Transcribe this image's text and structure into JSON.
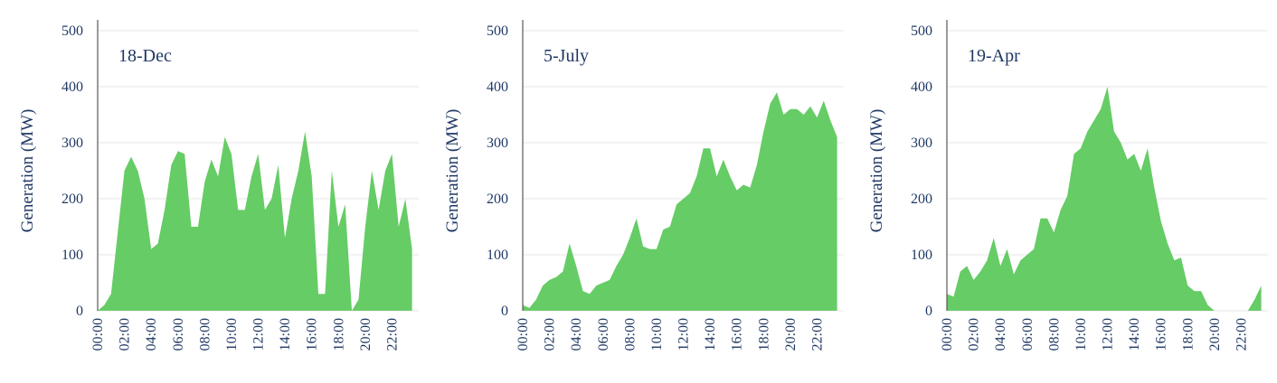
{
  "chart_data": [
    {
      "type": "area",
      "annotation": "18-Dec",
      "y_label": "Generation (MW)",
      "color": "#66cc66",
      "x": [
        0,
        0.5,
        1,
        1.5,
        2,
        2.5,
        3,
        3.5,
        4,
        4.5,
        5,
        5.5,
        6,
        6.5,
        7,
        7.5,
        8,
        8.5,
        9,
        9.5,
        10,
        10.5,
        11,
        11.5,
        12,
        12.5,
        13,
        13.5,
        14,
        14.5,
        15,
        15.5,
        16,
        16.5,
        17,
        17.5,
        18,
        18.5,
        19,
        19.5,
        20,
        20.5,
        21,
        21.5,
        22,
        22.5,
        23,
        23.5
      ],
      "values": [
        0,
        10,
        30,
        140,
        250,
        275,
        250,
        200,
        110,
        120,
        180,
        260,
        285,
        280,
        150,
        150,
        230,
        270,
        240,
        310,
        280,
        180,
        180,
        240,
        280,
        180,
        200,
        260,
        130,
        200,
        250,
        320,
        240,
        30,
        30,
        250,
        150,
        190,
        0,
        20,
        150,
        250,
        180,
        250,
        280,
        150,
        200,
        110
      ],
      "xlim": [
        0,
        24
      ],
      "xticks": [
        {
          "value": 0,
          "label": "00:00"
        },
        {
          "value": 2,
          "label": "02:00"
        },
        {
          "value": 4,
          "label": "04:00"
        },
        {
          "value": 6,
          "label": "06:00"
        },
        {
          "value": 8,
          "label": "08:00"
        },
        {
          "value": 10,
          "label": "10:00"
        },
        {
          "value": 12,
          "label": "12:00"
        },
        {
          "value": 14,
          "label": "14:00"
        },
        {
          "value": 16,
          "label": "16:00"
        },
        {
          "value": 18,
          "label": "18:00"
        },
        {
          "value": 20,
          "label": "20:00"
        },
        {
          "value": 22,
          "label": "22:00"
        }
      ],
      "ylim": [
        0,
        500
      ],
      "yticks": [
        0,
        100,
        200,
        300,
        400,
        500
      ],
      "grid": true
    },
    {
      "type": "area",
      "annotation": "5-July",
      "y_label": "Generation (MW)",
      "color": "#66cc66",
      "x": [
        0,
        0.5,
        1,
        1.5,
        2,
        2.5,
        3,
        3.5,
        4,
        4.5,
        5,
        5.5,
        6,
        6.5,
        7,
        7.5,
        8,
        8.5,
        9,
        9.5,
        10,
        10.5,
        11,
        11.5,
        12,
        12.5,
        13,
        13.5,
        14,
        14.5,
        15,
        15.5,
        16,
        16.5,
        17,
        17.5,
        18,
        18.5,
        19,
        19.5,
        20,
        20.5,
        21,
        21.5,
        22,
        22.5,
        23,
        23.5
      ],
      "values": [
        10,
        5,
        20,
        45,
        55,
        60,
        70,
        120,
        80,
        35,
        30,
        45,
        50,
        55,
        80,
        100,
        130,
        165,
        115,
        110,
        110,
        145,
        150,
        190,
        200,
        210,
        240,
        290,
        290,
        240,
        270,
        240,
        215,
        225,
        220,
        260,
        320,
        370,
        390,
        350,
        360,
        360,
        350,
        365,
        345,
        375,
        340,
        310
      ],
      "xlim": [
        0,
        24
      ],
      "xticks": [
        {
          "value": 0,
          "label": "00:00"
        },
        {
          "value": 2,
          "label": "02:00"
        },
        {
          "value": 4,
          "label": "04:00"
        },
        {
          "value": 6,
          "label": "06:00"
        },
        {
          "value": 8,
          "label": "08:00"
        },
        {
          "value": 10,
          "label": "10:00"
        },
        {
          "value": 12,
          "label": "12:00"
        },
        {
          "value": 14,
          "label": "14:00"
        },
        {
          "value": 16,
          "label": "16:00"
        },
        {
          "value": 18,
          "label": "18:00"
        },
        {
          "value": 20,
          "label": "20:00"
        },
        {
          "value": 22,
          "label": "22:00"
        }
      ],
      "ylim": [
        0,
        500
      ],
      "yticks": [
        0,
        100,
        200,
        300,
        400,
        500
      ],
      "grid": true
    },
    {
      "type": "area",
      "annotation": "19-Apr",
      "y_label": "Generation (MW)",
      "color": "#66cc66",
      "x": [
        0,
        0.5,
        1,
        1.5,
        2,
        2.5,
        3,
        3.5,
        4,
        4.5,
        5,
        5.5,
        6,
        6.5,
        7,
        7.5,
        8,
        8.5,
        9,
        9.5,
        10,
        10.5,
        11,
        11.5,
        12,
        12.5,
        13,
        13.5,
        14,
        14.5,
        15,
        15.5,
        16,
        16.5,
        17,
        17.5,
        18,
        18.5,
        19,
        19.5,
        20,
        20.5,
        21,
        21.5,
        22,
        22.5,
        23,
        23.5
      ],
      "values": [
        30,
        25,
        70,
        80,
        55,
        70,
        90,
        130,
        80,
        110,
        65,
        90,
        100,
        110,
        165,
        165,
        140,
        180,
        205,
        280,
        290,
        320,
        340,
        360,
        400,
        320,
        300,
        270,
        280,
        250,
        290,
        220,
        160,
        120,
        90,
        95,
        45,
        35,
        35,
        10,
        0,
        0,
        0,
        0,
        0,
        0,
        20,
        45
      ],
      "xlim": [
        0,
        24
      ],
      "xticks": [
        {
          "value": 0,
          "label": "00:00"
        },
        {
          "value": 2,
          "label": "02:00"
        },
        {
          "value": 4,
          "label": "04:00"
        },
        {
          "value": 6,
          "label": "06:00"
        },
        {
          "value": 8,
          "label": "08:00"
        },
        {
          "value": 10,
          "label": "10:00"
        },
        {
          "value": 12,
          "label": "12:00"
        },
        {
          "value": 14,
          "label": "14:00"
        },
        {
          "value": 16,
          "label": "16:00"
        },
        {
          "value": 18,
          "label": "18:00"
        },
        {
          "value": 20,
          "label": "20:00"
        },
        {
          "value": 22,
          "label": "22:00"
        }
      ],
      "ylim": [
        0,
        500
      ],
      "yticks": [
        0,
        100,
        200,
        300,
        400,
        500
      ],
      "grid": true
    }
  ]
}
